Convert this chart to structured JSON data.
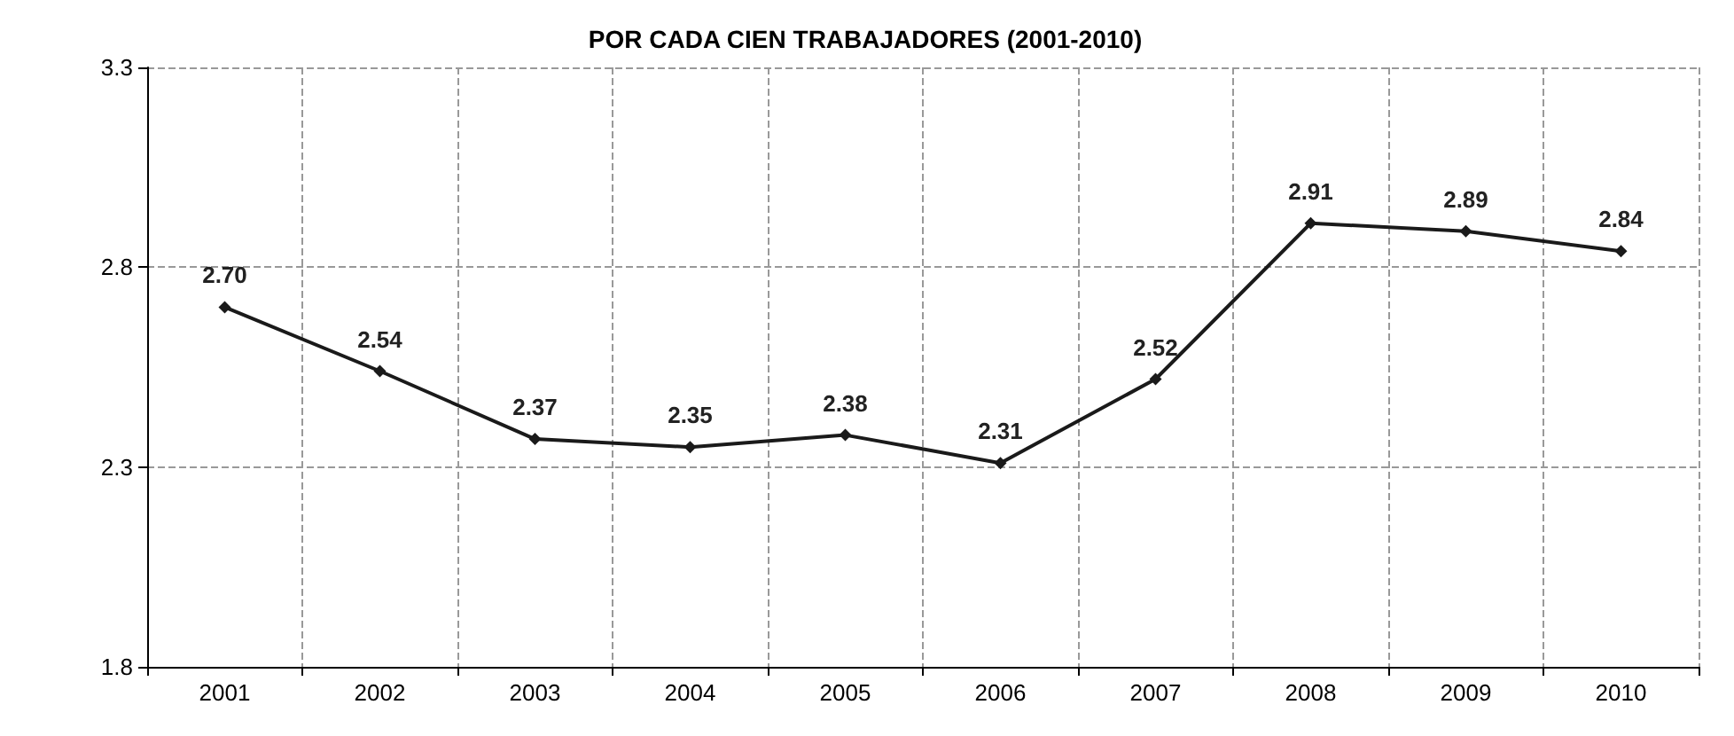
{
  "chart_data": {
    "type": "line",
    "title": "POR CADA CIEN TRABAJADORES (2001-2010)",
    "categories": [
      "2001",
      "2002",
      "2003",
      "2004",
      "2005",
      "2006",
      "2007",
      "2008",
      "2009",
      "2010"
    ],
    "series": [
      {
        "color": "#1a1a1a",
        "values": [
          2.7,
          2.54,
          2.37,
          2.35,
          2.38,
          2.31,
          2.52,
          2.91,
          2.89,
          2.84
        ],
        "value_labels": [
          "2.70",
          "2.54",
          "2.37",
          "2.35",
          "2.38",
          "2.31",
          "2.52",
          "2.91",
          "2.89",
          "2.84"
        ]
      }
    ],
    "ylim": [
      1.8,
      3.3
    ],
    "yticks": [
      1.8,
      2.3,
      2.8,
      3.3
    ],
    "grid": true,
    "marker": "diamond",
    "line_style": "solid"
  }
}
